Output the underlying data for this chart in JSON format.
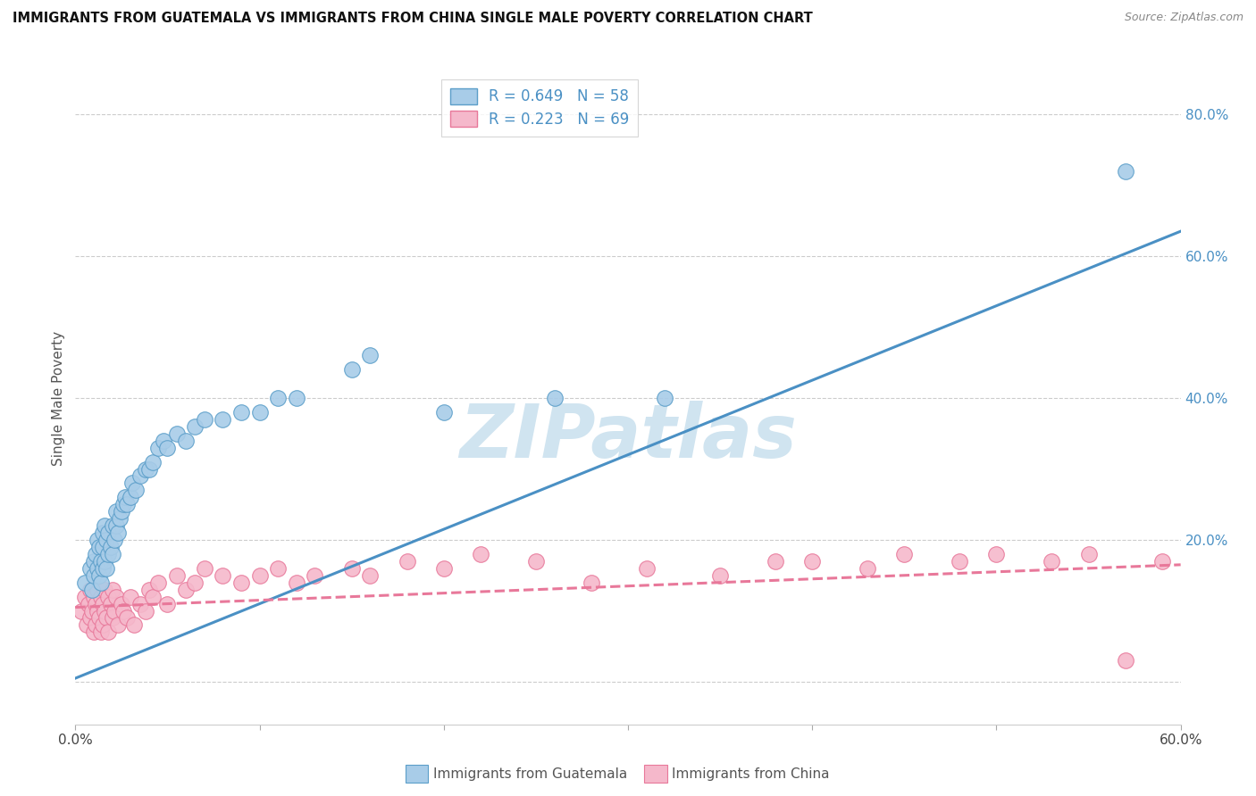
{
  "title": "IMMIGRANTS FROM GUATEMALA VS IMMIGRANTS FROM CHINA SINGLE MALE POVERTY CORRELATION CHART",
  "source": "Source: ZipAtlas.com",
  "ylabel": "Single Male Poverty",
  "xlim": [
    0.0,
    0.6
  ],
  "ylim": [
    -0.06,
    0.86
  ],
  "guatemala_R": 0.649,
  "guatemala_N": 58,
  "china_R": 0.223,
  "china_N": 69,
  "guatemala_color": "#a8cce8",
  "china_color": "#f5b8cb",
  "guatemala_edge_color": "#5b9ec9",
  "china_edge_color": "#e8789a",
  "guatemala_line_color": "#4a90c4",
  "china_line_color": "#e8789a",
  "watermark_color": "#d0e4f0",
  "legend_text_color": "#4a90c4",
  "guat_line_x0": 0.0,
  "guat_line_y0": 0.005,
  "guat_line_x1": 0.6,
  "guat_line_y1": 0.635,
  "china_line_x0": 0.0,
  "china_line_y0": 0.105,
  "china_line_x1": 0.6,
  "china_line_y1": 0.165,
  "guatemala_scatter_x": [
    0.005,
    0.008,
    0.009,
    0.01,
    0.01,
    0.011,
    0.012,
    0.012,
    0.013,
    0.013,
    0.014,
    0.014,
    0.015,
    0.015,
    0.015,
    0.016,
    0.016,
    0.017,
    0.017,
    0.018,
    0.018,
    0.019,
    0.02,
    0.02,
    0.021,
    0.022,
    0.022,
    0.023,
    0.024,
    0.025,
    0.026,
    0.027,
    0.028,
    0.03,
    0.031,
    0.033,
    0.035,
    0.038,
    0.04,
    0.042,
    0.045,
    0.048,
    0.05,
    0.055,
    0.06,
    0.065,
    0.07,
    0.08,
    0.09,
    0.1,
    0.11,
    0.12,
    0.15,
    0.16,
    0.2,
    0.26,
    0.32,
    0.57
  ],
  "guatemala_scatter_y": [
    0.14,
    0.16,
    0.13,
    0.17,
    0.15,
    0.18,
    0.16,
    0.2,
    0.15,
    0.19,
    0.14,
    0.17,
    0.19,
    0.16,
    0.21,
    0.17,
    0.22,
    0.16,
    0.2,
    0.18,
    0.21,
    0.19,
    0.22,
    0.18,
    0.2,
    0.22,
    0.24,
    0.21,
    0.23,
    0.24,
    0.25,
    0.26,
    0.25,
    0.26,
    0.28,
    0.27,
    0.29,
    0.3,
    0.3,
    0.31,
    0.33,
    0.34,
    0.33,
    0.35,
    0.34,
    0.36,
    0.37,
    0.37,
    0.38,
    0.38,
    0.4,
    0.4,
    0.44,
    0.46,
    0.38,
    0.4,
    0.4,
    0.72
  ],
  "china_scatter_x": [
    0.003,
    0.005,
    0.006,
    0.007,
    0.008,
    0.008,
    0.009,
    0.01,
    0.01,
    0.011,
    0.011,
    0.012,
    0.012,
    0.013,
    0.014,
    0.014,
    0.015,
    0.015,
    0.016,
    0.016,
    0.017,
    0.018,
    0.018,
    0.019,
    0.02,
    0.02,
    0.021,
    0.022,
    0.023,
    0.025,
    0.026,
    0.028,
    0.03,
    0.032,
    0.035,
    0.038,
    0.04,
    0.042,
    0.045,
    0.05,
    0.055,
    0.06,
    0.065,
    0.07,
    0.08,
    0.09,
    0.1,
    0.11,
    0.12,
    0.13,
    0.15,
    0.16,
    0.18,
    0.2,
    0.22,
    0.25,
    0.28,
    0.31,
    0.35,
    0.38,
    0.4,
    0.43,
    0.45,
    0.48,
    0.5,
    0.53,
    0.55,
    0.57,
    0.59
  ],
  "china_scatter_y": [
    0.1,
    0.12,
    0.08,
    0.11,
    0.13,
    0.09,
    0.1,
    0.12,
    0.07,
    0.11,
    0.08,
    0.13,
    0.1,
    0.09,
    0.12,
    0.07,
    0.11,
    0.08,
    0.13,
    0.1,
    0.09,
    0.12,
    0.07,
    0.11,
    0.13,
    0.09,
    0.1,
    0.12,
    0.08,
    0.11,
    0.1,
    0.09,
    0.12,
    0.08,
    0.11,
    0.1,
    0.13,
    0.12,
    0.14,
    0.11,
    0.15,
    0.13,
    0.14,
    0.16,
    0.15,
    0.14,
    0.15,
    0.16,
    0.14,
    0.15,
    0.16,
    0.15,
    0.17,
    0.16,
    0.18,
    0.17,
    0.14,
    0.16,
    0.15,
    0.17,
    0.17,
    0.16,
    0.18,
    0.17,
    0.18,
    0.17,
    0.18,
    0.03,
    0.17
  ]
}
